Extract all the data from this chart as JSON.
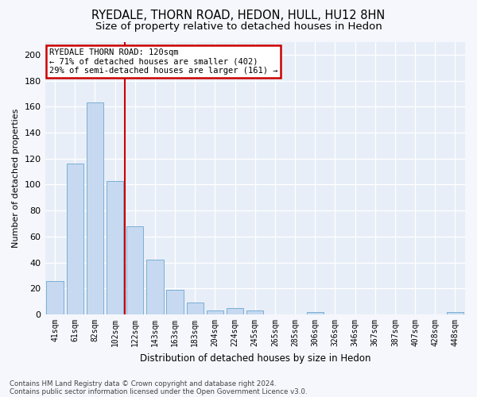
{
  "title": "RYEDALE, THORN ROAD, HEDON, HULL, HU12 8HN",
  "subtitle": "Size of property relative to detached houses in Hedon",
  "xlabel": "Distribution of detached houses by size in Hedon",
  "ylabel": "Number of detached properties",
  "categories": [
    "41sqm",
    "61sqm",
    "82sqm",
    "102sqm",
    "122sqm",
    "143sqm",
    "163sqm",
    "183sqm",
    "204sqm",
    "224sqm",
    "245sqm",
    "265sqm",
    "285sqm",
    "306sqm",
    "326sqm",
    "346sqm",
    "367sqm",
    "387sqm",
    "407sqm",
    "428sqm",
    "448sqm"
  ],
  "values": [
    26,
    116,
    163,
    103,
    68,
    42,
    19,
    9,
    3,
    5,
    3,
    0,
    0,
    2,
    0,
    0,
    0,
    0,
    0,
    0,
    2
  ],
  "bar_color": "#c6d9f0",
  "bar_edge_color": "#7bafd4",
  "annotation_title": "RYEDALE THORN ROAD: 120sqm",
  "annotation_line1": "← 71% of detached houses are smaller (402)",
  "annotation_line2": "29% of semi-detached houses are larger (161) →",
  "annotation_box_color": "#ffffff",
  "annotation_box_edge": "#cc0000",
  "vline_color": "#cc0000",
  "ylim": [
    0,
    210
  ],
  "yticks": [
    0,
    20,
    40,
    60,
    80,
    100,
    120,
    140,
    160,
    180,
    200
  ],
  "footnote1": "Contains HM Land Registry data © Crown copyright and database right 2024.",
  "footnote2": "Contains public sector information licensed under the Open Government Licence v3.0.",
  "plot_bg_color": "#e8eef8",
  "fig_bg_color": "#f5f7fc",
  "title_fontsize": 10.5,
  "subtitle_fontsize": 9.5,
  "vline_x_index": 3.5
}
